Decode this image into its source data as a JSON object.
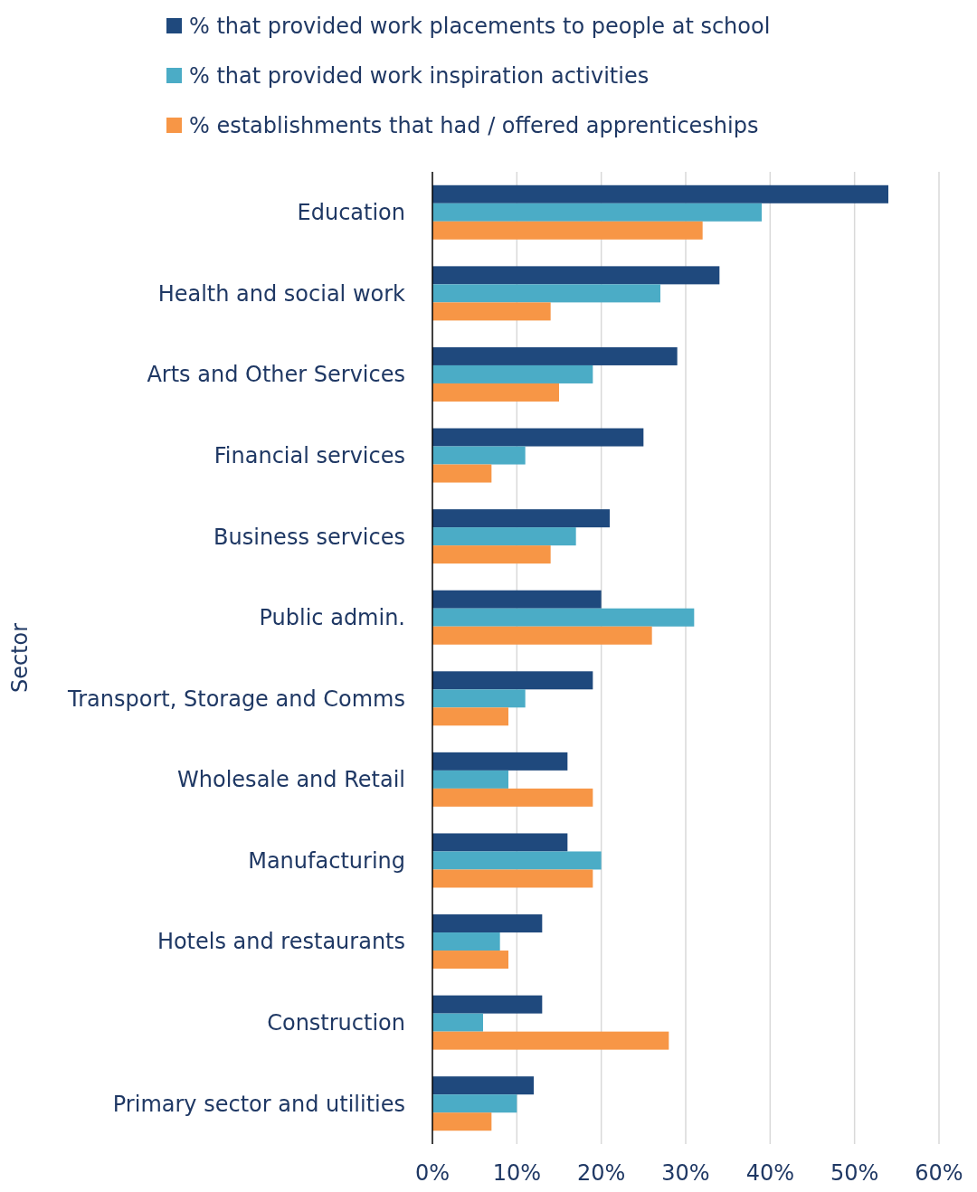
{
  "chart_data": {
    "type": "bar",
    "orientation": "horizontal",
    "ylabel": "Sector",
    "categories": [
      "Education",
      "Health and social work",
      "Arts and Other Services",
      "Financial services",
      "Business services",
      "Public admin.",
      "Transport, Storage and Comms",
      "Wholesale and Retail",
      "Manufacturing",
      "Hotels and restaurants",
      "Construction",
      "Primary sector and utilities"
    ],
    "series": [
      {
        "name": "% that provided work placements to people at school",
        "color": "#1f497d",
        "values": [
          54,
          34,
          29,
          25,
          21,
          20,
          19,
          16,
          16,
          13,
          13,
          12
        ]
      },
      {
        "name": "% that provided work inspiration activities",
        "color": "#4bacc6",
        "values": [
          39,
          27,
          19,
          11,
          17,
          31,
          11,
          9,
          20,
          8,
          6,
          10
        ]
      },
      {
        "name": "% establishments that had / offered apprenticeships",
        "color": "#f79646",
        "values": [
          32,
          14,
          15,
          7,
          14,
          26,
          9,
          19,
          19,
          9,
          28,
          7
        ]
      }
    ],
    "xlim": [
      0,
      60
    ],
    "xticks": [
      {
        "value": 0,
        "label": "0%"
      },
      {
        "value": 10,
        "label": "10%"
      },
      {
        "value": 20,
        "label": "20%"
      },
      {
        "value": 30,
        "label": "30%"
      },
      {
        "value": 40,
        "label": "40%"
      },
      {
        "value": 50,
        "label": "50%"
      },
      {
        "value": 60,
        "label": "60%"
      }
    ],
    "grid": "x",
    "legend": "top"
  }
}
